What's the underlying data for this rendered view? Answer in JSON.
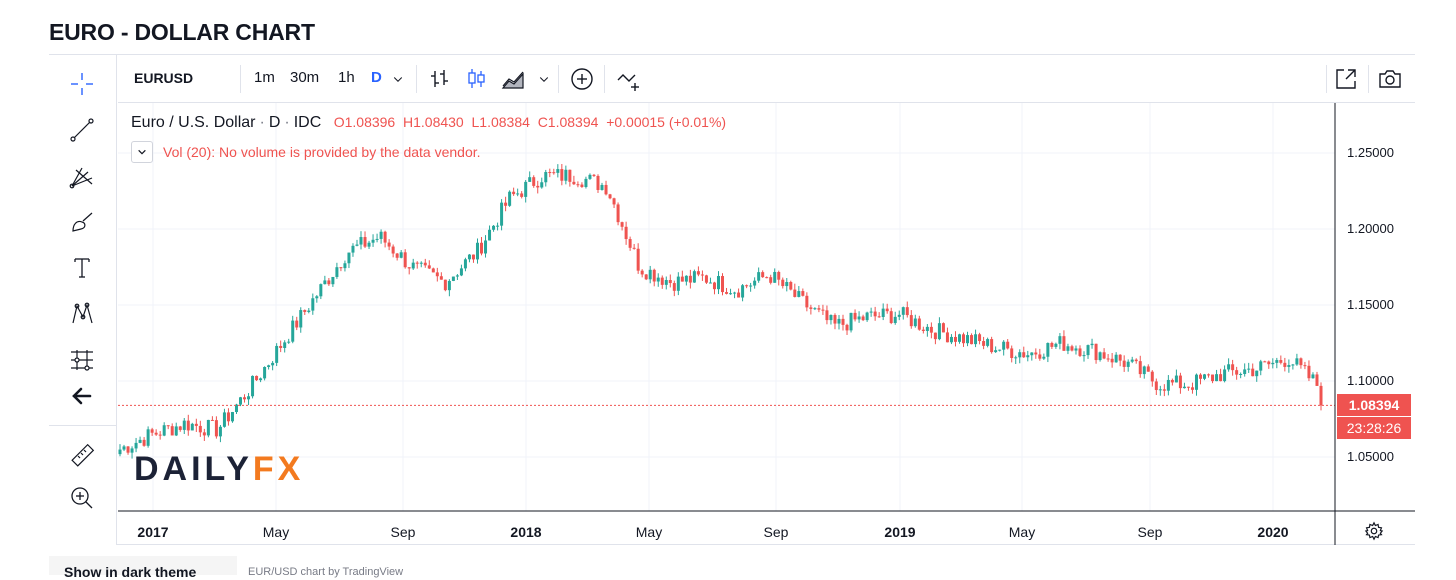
{
  "page_title": "EURO - DOLLAR CHART",
  "toolbar": {
    "symbol": "EURUSD",
    "intervals": [
      "1m",
      "30m",
      "1h",
      "D"
    ],
    "active_interval": "D"
  },
  "legend": {
    "name": "Euro / U.S. Dollar",
    "interval": "D",
    "source": "IDC",
    "open": "O1.08396",
    "high": "H1.08430",
    "low": "L1.08384",
    "close": "C1.08394",
    "change": "+0.00015 (+0.01%)",
    "volume_note": "Vol (20): No volume is provided by the data vendor."
  },
  "watermark": {
    "part1": "DAILY",
    "part2": "FX"
  },
  "price_axis": {
    "ticks": [
      "1.25000",
      "1.20000",
      "1.15000",
      "1.10000",
      "1.05000"
    ],
    "last_price": "1.08394",
    "countdown": "23:28:26"
  },
  "time_axis": {
    "ticks": [
      {
        "label": "2017",
        "bold": true
      },
      {
        "label": "May",
        "bold": false
      },
      {
        "label": "Sep",
        "bold": false
      },
      {
        "label": "2018",
        "bold": true
      },
      {
        "label": "May",
        "bold": false
      },
      {
        "label": "Sep",
        "bold": false
      },
      {
        "label": "2019",
        "bold": true
      },
      {
        "label": "May",
        "bold": false
      },
      {
        "label": "Sep",
        "bold": false
      },
      {
        "label": "2020",
        "bold": true
      }
    ]
  },
  "bottom": {
    "tab_label": "Show in dark theme",
    "note": "EUR/USD chart by TradingView"
  },
  "colors": {
    "up": "#26a69a",
    "down": "#ef5350",
    "accent": "#2962ff"
  },
  "icons": [
    "crosshair-icon",
    "trend-line-icon",
    "gann-fib-icon",
    "brush-icon",
    "text-icon",
    "pattern-icon",
    "prediction-icon",
    "back-arrow-icon",
    "ruler-icon",
    "zoom-in-icon",
    "bar-chart-icon",
    "candles-icon",
    "area-chart-icon",
    "add-indicator-icon",
    "compare-icon",
    "fullscreen-icon",
    "screenshot-icon",
    "settings-gear-icon"
  ],
  "chart_data": {
    "type": "candlestick",
    "symbol": "EURUSD",
    "interval": "D",
    "x": [
      "2017-01",
      "2017-02",
      "2017-03",
      "2017-04",
      "2017-05",
      "2017-06",
      "2017-07",
      "2017-08",
      "2017-09",
      "2017-10",
      "2017-11",
      "2017-12",
      "2018-01",
      "2018-02",
      "2018-03",
      "2018-04",
      "2018-05",
      "2018-06",
      "2018-07",
      "2018-08",
      "2018-09",
      "2018-10",
      "2018-11",
      "2018-12",
      "2019-01",
      "2019-02",
      "2019-03",
      "2019-04",
      "2019-05",
      "2019-06",
      "2019-07",
      "2019-08",
      "2019-09",
      "2019-10",
      "2019-11",
      "2019-12",
      "2020-01",
      "2020-02"
    ],
    "y": [
      1.055,
      1.065,
      1.072,
      1.068,
      1.095,
      1.125,
      1.155,
      1.185,
      1.195,
      1.175,
      1.165,
      1.185,
      1.22,
      1.235,
      1.235,
      1.228,
      1.175,
      1.165,
      1.168,
      1.16,
      1.17,
      1.152,
      1.136,
      1.142,
      1.144,
      1.134,
      1.128,
      1.122,
      1.118,
      1.125,
      1.12,
      1.112,
      1.098,
      1.098,
      1.105,
      1.108,
      1.115,
      1.095
    ],
    "last": {
      "open": 1.08396,
      "high": 1.0843,
      "low": 1.08384,
      "close": 1.08394
    },
    "ylim": [
      1.02,
      1.27
    ],
    "grid": true
  }
}
